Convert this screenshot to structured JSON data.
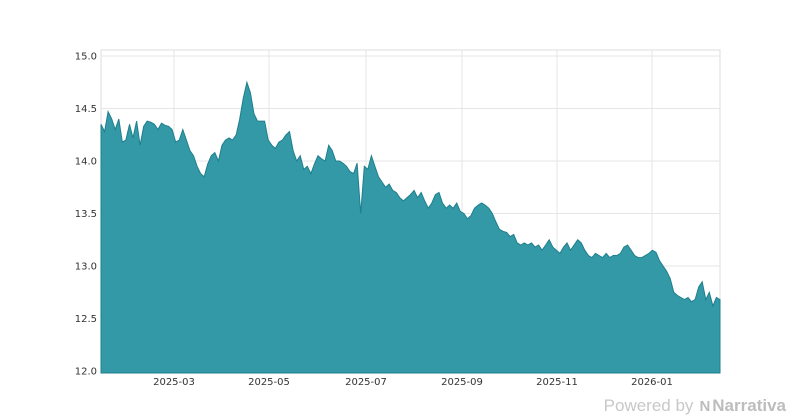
{
  "chart_data": {
    "type": "area",
    "title": "",
    "xlabel": "",
    "ylabel": "",
    "ylim": [
      12.0,
      15.0
    ],
    "grid": true,
    "legend": "none",
    "y_ticks": [
      "12.0",
      "12.5",
      "13.0",
      "13.5",
      "14.0",
      "14.5",
      "15.0"
    ],
    "x_ticks": [
      "2025-03",
      "2025-05",
      "2025-07",
      "2025-09",
      "2025-11",
      "2026-01"
    ],
    "fill_color": "#3399a6",
    "line_color": "#1f7f8c",
    "x_start": "2025-01-15",
    "x_end": "2026-02-10",
    "values": [
      14.35,
      14.28,
      14.47,
      14.4,
      14.3,
      14.4,
      14.18,
      14.2,
      14.35,
      14.22,
      14.38,
      14.15,
      14.33,
      14.38,
      14.37,
      14.35,
      14.3,
      14.36,
      14.34,
      14.33,
      14.3,
      14.18,
      14.2,
      14.3,
      14.2,
      14.1,
      14.05,
      13.95,
      13.88,
      13.85,
      13.97,
      14.05,
      14.08,
      14.0,
      14.15,
      14.2,
      14.22,
      14.2,
      14.25,
      14.4,
      14.6,
      14.75,
      14.65,
      14.45,
      14.38,
      14.38,
      14.38,
      14.2,
      14.15,
      14.12,
      14.18,
      14.2,
      14.25,
      14.28,
      14.1,
      14.0,
      14.05,
      13.92,
      13.95,
      13.88,
      13.97,
      14.05,
      14.02,
      14.0,
      14.15,
      14.1,
      14.0,
      14.0,
      13.98,
      13.95,
      13.9,
      13.88,
      13.98,
      13.5,
      13.95,
      13.92,
      14.05,
      13.95,
      13.85,
      13.8,
      13.75,
      13.78,
      13.72,
      13.7,
      13.65,
      13.62,
      13.65,
      13.68,
      13.72,
      13.65,
      13.7,
      13.62,
      13.55,
      13.6,
      13.68,
      13.7,
      13.6,
      13.55,
      13.58,
      13.55,
      13.6,
      13.52,
      13.5,
      13.45,
      13.48,
      13.55,
      13.58,
      13.6,
      13.58,
      13.55,
      13.5,
      13.42,
      13.35,
      13.33,
      13.32,
      13.28,
      13.3,
      13.22,
      13.2,
      13.22,
      13.2,
      13.22,
      13.18,
      13.2,
      13.15,
      13.2,
      13.25,
      13.18,
      13.15,
      13.12,
      13.18,
      13.22,
      13.15,
      13.2,
      13.25,
      13.22,
      13.15,
      13.1,
      13.08,
      13.12,
      13.1,
      13.08,
      13.12,
      13.08,
      13.1,
      13.1,
      13.12,
      13.18,
      13.2,
      13.15,
      13.1,
      13.08,
      13.08,
      13.1,
      13.12,
      13.15,
      13.13,
      13.05,
      13.0,
      12.95,
      12.88,
      12.75,
      12.72,
      12.7,
      12.68,
      12.7,
      12.66,
      12.68,
      12.8,
      12.85,
      12.68,
      12.75,
      12.62,
      12.7,
      12.68
    ]
  },
  "footer": {
    "powered_by": "Powered by",
    "brand": "Narrativa",
    "logo_glyph": "N"
  }
}
